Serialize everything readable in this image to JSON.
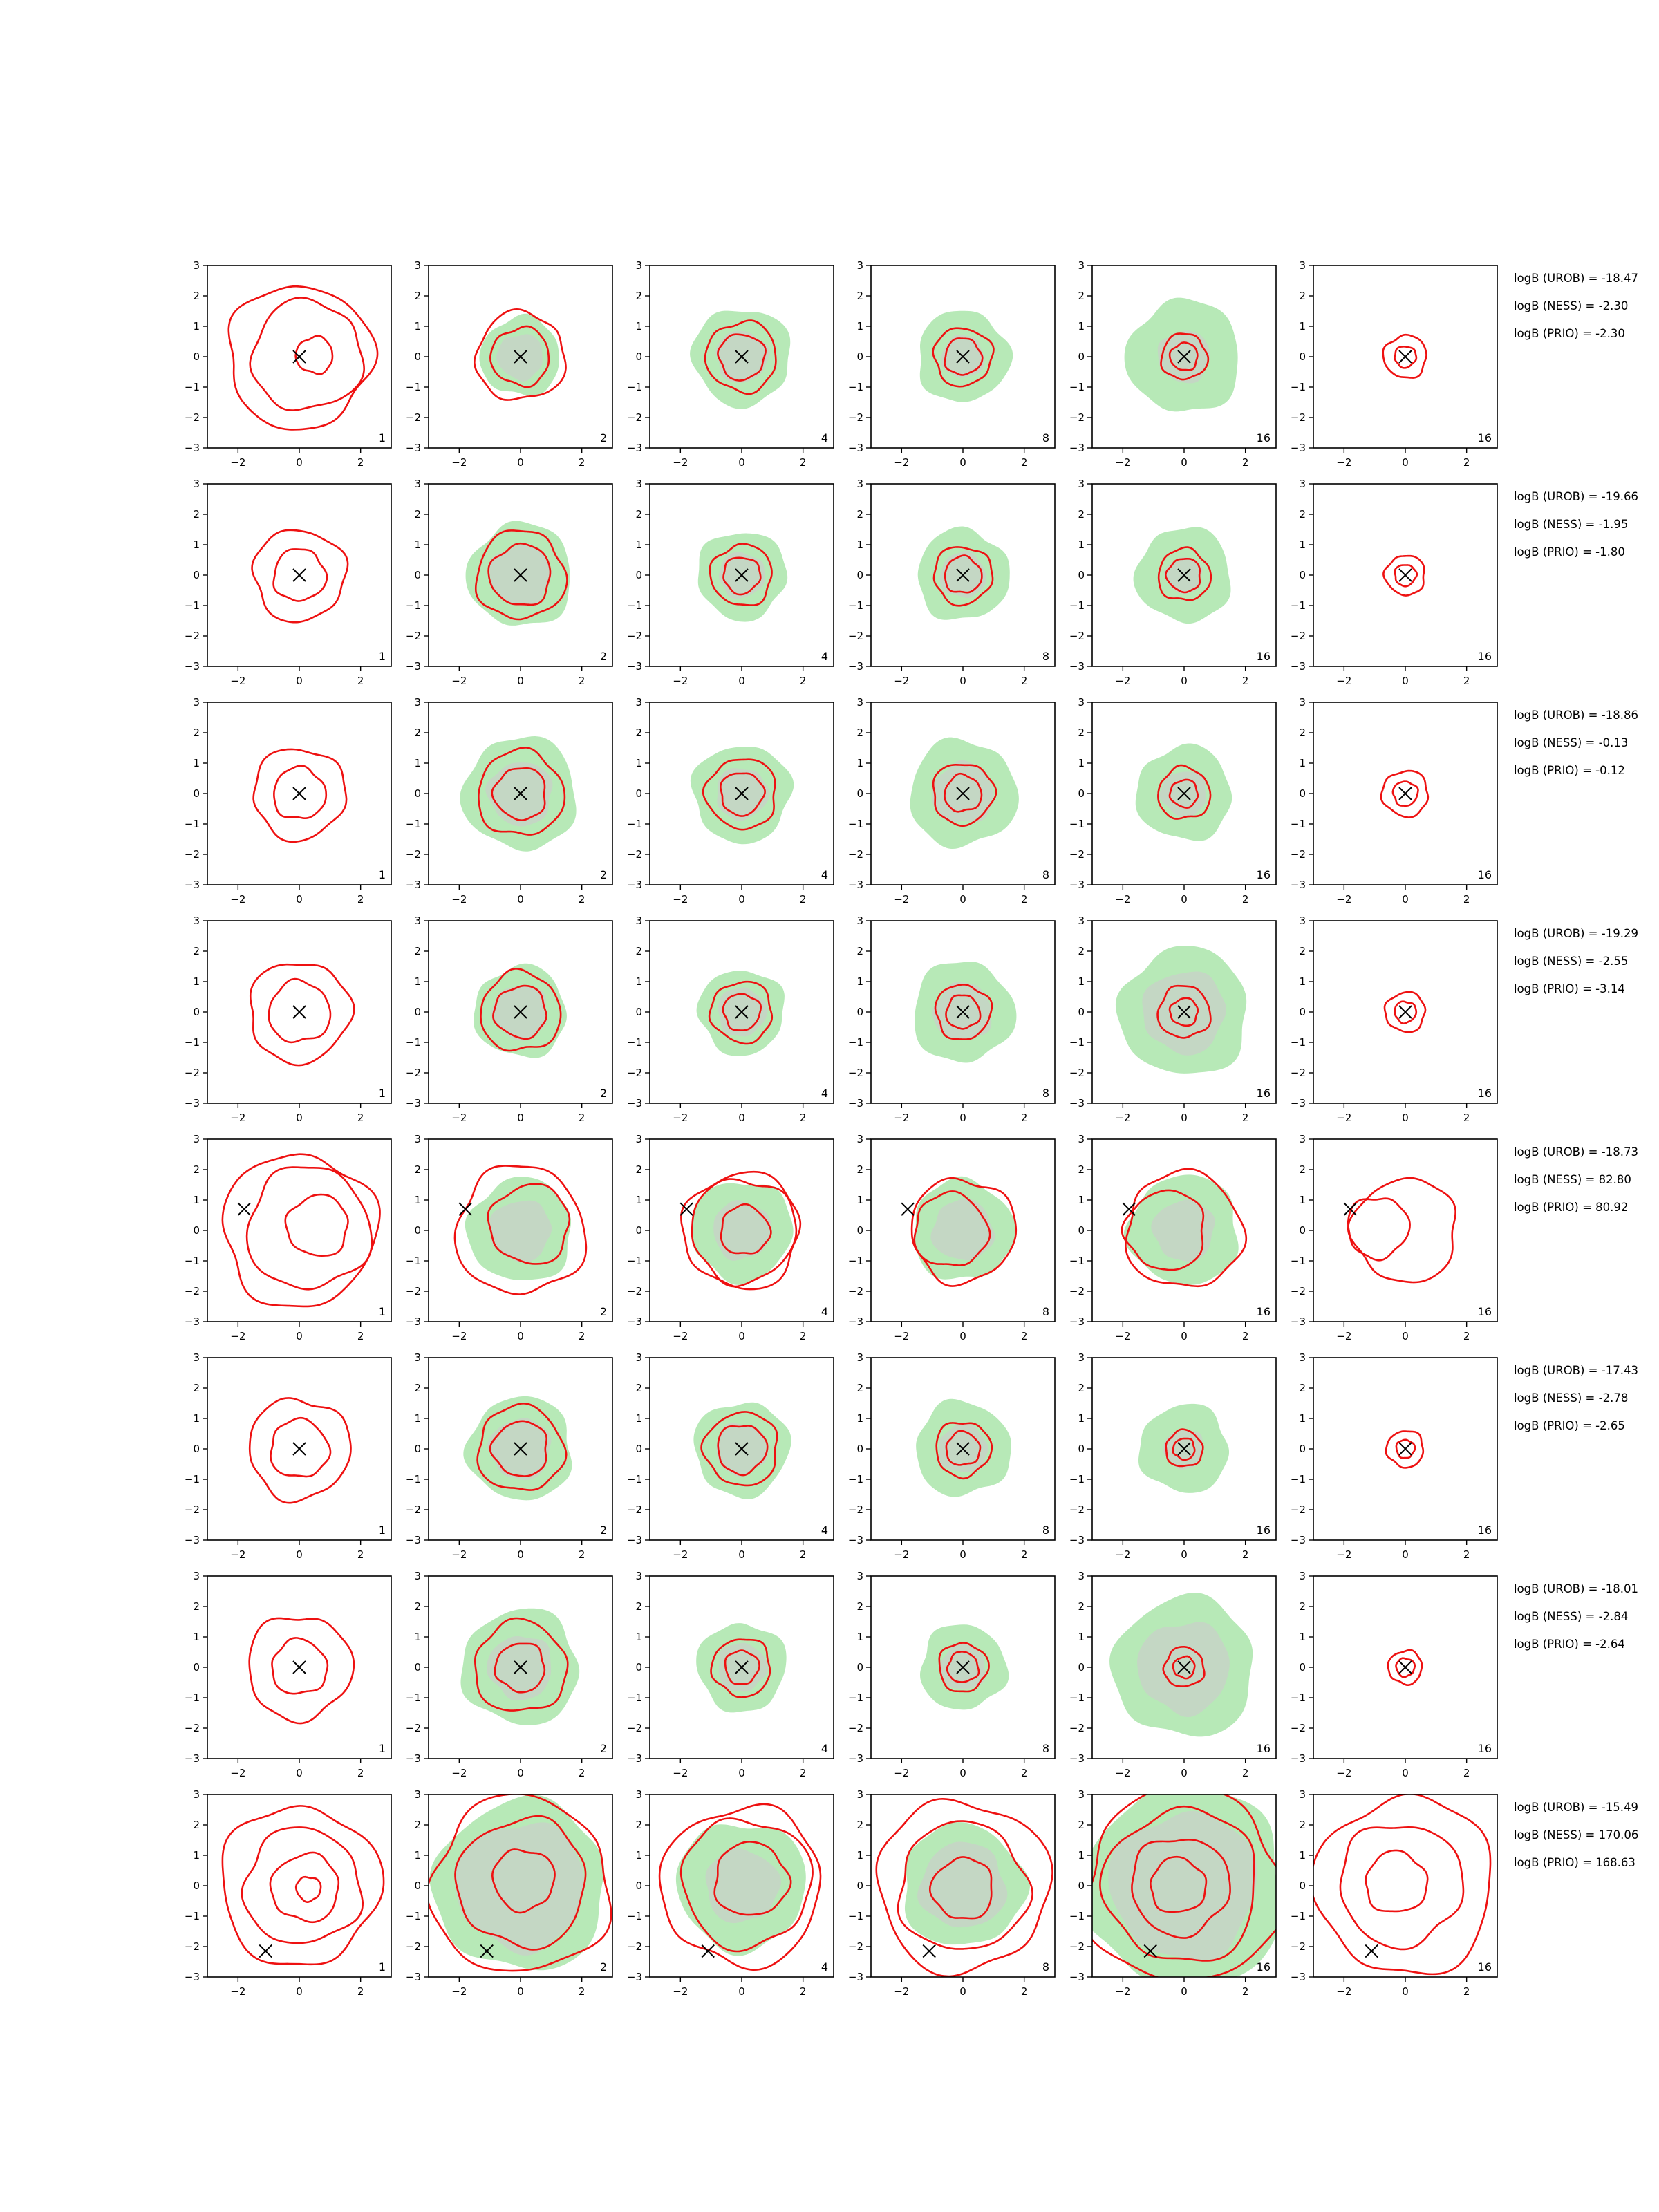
{
  "chart_data": {
    "type": "contour-grid",
    "xlim": [
      -3,
      3
    ],
    "ylim": [
      -3,
      3
    ],
    "xticks": [
      -2,
      0,
      2
    ],
    "yticks": [
      -3,
      -2,
      -1,
      0,
      1,
      2,
      3
    ],
    "tick_labels_x": [
      "−2",
      "0",
      "2"
    ],
    "tick_labels_y": [
      "−3",
      "−2",
      "−1",
      "0",
      "1",
      "2",
      "3"
    ],
    "columns": [
      {
        "label": "1",
        "green_fill": false
      },
      {
        "label": "2",
        "green_fill": true
      },
      {
        "label": "4",
        "green_fill": true
      },
      {
        "label": "8",
        "green_fill": true
      },
      {
        "label": "16",
        "green_fill": true
      },
      {
        "label": "16",
        "green_fill": false
      }
    ],
    "colors": {
      "contour": "#ee1111",
      "outer_fill": "#b7e9b7",
      "inner_fill": "#c4d7c4",
      "marker": "#000000",
      "axes": "#000000"
    },
    "rows": [
      {
        "marker": [
          0,
          0
        ],
        "notes": [
          "logB (UROB) = -18.47",
          "logB (NESS) = -2.30",
          "logB (PRIO) = -2.30"
        ],
        "panels": [
          {
            "contours": [
              2.35,
              1.8,
              0.6
            ],
            "offset": [
              0.5,
              0.05
            ]
          },
          {
            "contours": [
              1.45,
              0.95
            ],
            "green": [
              1.3,
              0.75
            ]
          },
          {
            "contours": [
              1.15,
              0.75
            ],
            "green": [
              1.6,
              0.85
            ]
          },
          {
            "contours": [
              0.95,
              0.6
            ],
            "green": [
              1.5,
              0.7
            ]
          },
          {
            "contours": [
              0.75,
              0.45
            ],
            "green": [
              1.85,
              0.85
            ]
          },
          {
            "contours": [
              0.7,
              0.35
            ]
          }
        ]
      },
      {
        "marker": [
          0,
          0
        ],
        "notes": [
          "logB (UROB) = -19.66",
          "logB (NESS) = -1.95",
          "logB (PRIO) = -1.80"
        ],
        "panels": [
          {
            "contours": [
              1.5,
              0.85
            ]
          },
          {
            "contours": [
              1.45,
              1.0
            ],
            "green": [
              1.7,
              1.0
            ]
          },
          {
            "contours": [
              1.0,
              0.6
            ],
            "green": [
              1.45,
              0.75
            ]
          },
          {
            "contours": [
              0.95,
              0.6
            ],
            "green": [
              1.5,
              0.75
            ]
          },
          {
            "contours": [
              0.85,
              0.55
            ],
            "green": [
              1.55,
              0.6
            ]
          },
          {
            "contours": [
              0.65,
              0.35
            ]
          }
        ]
      },
      {
        "marker": [
          0,
          0
        ],
        "notes": [
          "logB (UROB) = -18.86",
          "logB (NESS) = -0.13",
          "logB (PRIO) = -0.12"
        ],
        "panels": [
          {
            "contours": [
              1.5,
              0.85
            ]
          },
          {
            "contours": [
              1.4,
              0.85
            ],
            "green": [
              1.85,
              1.05
            ]
          },
          {
            "contours": [
              1.15,
              0.7
            ],
            "green": [
              1.6,
              0.85
            ]
          },
          {
            "contours": [
              1.0,
              0.6
            ],
            "green": [
              1.75,
              1.0
            ]
          },
          {
            "contours": [
              0.85,
              0.45
            ],
            "green": [
              1.55,
              0.75
            ]
          },
          {
            "contours": [
              0.75,
              0.4
            ]
          }
        ]
      },
      {
        "marker": [
          0,
          0
        ],
        "notes": [
          "logB (UROB) = -19.29",
          "logB (NESS) = -2.55",
          "logB (PRIO) = -3.14"
        ],
        "panels": [
          {
            "contours": [
              1.65,
              1.0
            ]
          },
          {
            "contours": [
              1.3,
              0.85
            ],
            "green": [
              1.5,
              0.9
            ]
          },
          {
            "contours": [
              1.0,
              0.6
            ],
            "green": [
              1.4,
              0.8
            ]
          },
          {
            "contours": [
              0.9,
              0.55
            ],
            "green": [
              1.65,
              0.95
            ]
          },
          {
            "contours": [
              0.85,
              0.45
            ],
            "green": [
              2.1,
              1.35
            ]
          },
          {
            "contours": [
              0.65,
              0.35
            ]
          }
        ]
      },
      {
        "marker": [
          -1.8,
          0.7
        ],
        "notes": [
          "logB (UROB) = -18.73",
          "logB (NESS) = 82.80",
          "logB (PRIO) = 80.92"
        ],
        "panels": [
          {
            "contours": [
              2.5,
              2.0,
              1.0
            ],
            "offset": [
              0.6,
              0.15
            ]
          },
          {
            "contours": [
              2.1,
              1.3
            ],
            "green": [
              1.7,
              1.0
            ],
            "offset": [
              0.3,
              0.2
            ]
          },
          {
            "contours": [
              1.9,
              1.7,
              0.8
            ],
            "green": [
              1.65,
              0.95
            ],
            "offset": [
              0.1,
              0.0
            ]
          },
          {
            "contours": [
              1.7,
              1.2
            ],
            "green": [
              1.65,
              1.0
            ],
            "offset": [
              -0.4,
              0.0
            ]
          },
          {
            "contours": [
              1.9,
              1.3
            ],
            "green": [
              1.8,
              1.0
            ],
            "offset": [
              -0.6,
              0.0
            ]
          },
          {
            "contours": [
              1.7,
              1.0
            ],
            "offset": [
              -0.9,
              0.1
            ]
          }
        ]
      },
      {
        "marker": [
          0,
          0
        ],
        "notes": [
          "logB (UROB) = -17.43",
          "logB (NESS) = -2.78",
          "logB (PRIO) = -2.65"
        ],
        "panels": [
          {
            "contours": [
              1.65,
              0.95
            ]
          },
          {
            "contours": [
              1.4,
              0.9
            ],
            "green": [
              1.7,
              1.0
            ]
          },
          {
            "contours": [
              1.2,
              0.8
            ],
            "green": [
              1.55,
              0.85
            ]
          },
          {
            "contours": [
              0.9,
              0.55
            ],
            "green": [
              1.55,
              0.8
            ]
          },
          {
            "contours": [
              0.6,
              0.35
            ],
            "green": [
              1.45,
              0.65
            ]
          },
          {
            "contours": [
              0.6,
              0.3
            ]
          }
        ]
      },
      {
        "marker": [
          0,
          0
        ],
        "notes": [
          "logB (UROB) = -18.01",
          "logB (NESS) = -2.84",
          "logB (PRIO) = -2.64"
        ],
        "panels": [
          {
            "contours": [
              1.7,
              0.9
            ]
          },
          {
            "contours": [
              1.5,
              0.8
            ],
            "green": [
              1.9,
              1.05
            ]
          },
          {
            "contours": [
              0.95,
              0.55
            ],
            "green": [
              1.45,
              0.8
            ]
          },
          {
            "contours": [
              0.8,
              0.5
            ],
            "green": [
              1.4,
              0.75
            ]
          },
          {
            "contours": [
              0.65,
              0.35
            ],
            "green": [
              2.3,
              1.5
            ]
          },
          {
            "contours": [
              0.55,
              0.3
            ]
          }
        ]
      },
      {
        "marker": [
          -1.1,
          -2.15
        ],
        "notes": [
          "logB (UROB) = -15.49",
          "logB (NESS) = 170.06",
          "logB (PRIO) = 168.63"
        ],
        "panels": [
          {
            "contours": [
              2.6,
              1.9,
              1.1,
              0.4
            ],
            "offset": [
              0.3,
              -0.1
            ]
          },
          {
            "contours": [
              2.9,
              2.1,
              1.0
            ],
            "green": [
              2.8,
              2.1
            ],
            "offset": [
              0.1,
              0.2
            ]
          },
          {
            "contours": [
              2.6,
              2.1,
              1.2
            ],
            "green": [
              2.1,
              1.2
            ],
            "offset": [
              0.3,
              0.2
            ]
          },
          {
            "contours": [
              2.8,
              2.1,
              1.0
            ],
            "green": [
              2.0,
              1.4
            ],
            "offset": [
              0.0,
              -0.1
            ]
          },
          {
            "contours": [
              3.2,
              2.5,
              1.6,
              0.9
            ],
            "green": [
              3.3,
              2.4
            ],
            "offset": [
              -0.2,
              0.0
            ]
          },
          {
            "contours": [
              2.9,
              2.0,
              1.0
            ],
            "offset": [
              -0.3,
              0.1
            ]
          }
        ]
      }
    ]
  }
}
